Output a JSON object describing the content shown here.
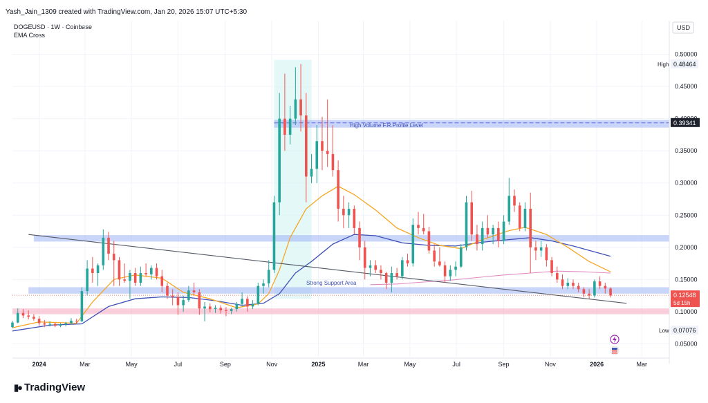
{
  "header": {
    "created_line": "Yash_Jain_1309 created with TradingView.com, Jan 20, 2026 15:07 UTC+5:30",
    "symbol_line": "DOGEUSD · 1W · Coinbase",
    "indicator": "EMA Cross"
  },
  "brand": {
    "name": "TradingView"
  },
  "price_axis": {
    "currency": "USD"
  },
  "labels": {
    "high_tag": "High",
    "high_value": "0.48464",
    "low_tag": "Low",
    "low_value": "0.07076",
    "last_price": "0.12548",
    "countdown": "5d 15h",
    "level_price": "0.39341",
    "hvp_text": "High Volume F.R.Profile Level",
    "support_text": "Strong Support Area"
  },
  "colors": {
    "bull": "#26a69a",
    "bear": "#ef5350",
    "ema_fast": "#f5a623",
    "ema_slow": "#3f51b5",
    "ma_long": "#e38bc2",
    "blue_zone": "#9fb3f5",
    "pink_zone": "#f7a7c0"
  },
  "chart_data": {
    "type": "candlestick",
    "ylim": [
      0.03,
      0.52
    ],
    "y_ticks": [
      "0.50000",
      "0.45000",
      "0.40000",
      "0.35000",
      "0.30000",
      "0.25000",
      "0.20000",
      "0.15000",
      "0.10000",
      "0.05000"
    ],
    "y_tick_values": [
      0.5,
      0.45,
      0.4,
      0.35,
      0.3,
      0.25,
      0.2,
      0.15,
      0.1,
      0.05
    ],
    "x_ticks": [
      "2024",
      "Mar",
      "May",
      "Jul",
      "Sep",
      "Nov",
      "2025",
      "Mar",
      "May",
      "Jul",
      "Sep",
      "Nov",
      "2026",
      "Mar"
    ],
    "x_tick_dates": [
      "2024-01-01",
      "2024-03-01",
      "2024-05-01",
      "2024-07-01",
      "2024-09-01",
      "2024-11-01",
      "2025-01-01",
      "2025-03-01",
      "2025-05-01",
      "2025-07-01",
      "2025-09-01",
      "2025-11-01",
      "2026-01-01",
      "2026-03-01"
    ],
    "x_range": [
      "2023-11-27",
      "2026-04-06"
    ],
    "candles": [
      {
        "d": "2023-11-27",
        "o": 0.076,
        "h": 0.086,
        "l": 0.074,
        "c": 0.083
      },
      {
        "d": "2023-12-04",
        "o": 0.083,
        "h": 0.105,
        "l": 0.082,
        "c": 0.098
      },
      {
        "d": "2023-12-11",
        "o": 0.098,
        "h": 0.104,
        "l": 0.09,
        "c": 0.094
      },
      {
        "d": "2023-12-18",
        "o": 0.094,
        "h": 0.102,
        "l": 0.088,
        "c": 0.092
      },
      {
        "d": "2023-12-25",
        "o": 0.092,
        "h": 0.096,
        "l": 0.086,
        "c": 0.089
      },
      {
        "d": "2024-01-01",
        "o": 0.089,
        "h": 0.093,
        "l": 0.078,
        "c": 0.082
      },
      {
        "d": "2024-01-08",
        "o": 0.082,
        "h": 0.087,
        "l": 0.076,
        "c": 0.08
      },
      {
        "d": "2024-01-15",
        "o": 0.08,
        "h": 0.085,
        "l": 0.077,
        "c": 0.081
      },
      {
        "d": "2024-01-22",
        "o": 0.081,
        "h": 0.083,
        "l": 0.076,
        "c": 0.078
      },
      {
        "d": "2024-01-29",
        "o": 0.078,
        "h": 0.082,
        "l": 0.076,
        "c": 0.08
      },
      {
        "d": "2024-02-05",
        "o": 0.08,
        "h": 0.084,
        "l": 0.077,
        "c": 0.082
      },
      {
        "d": "2024-02-12",
        "o": 0.082,
        "h": 0.09,
        "l": 0.08,
        "c": 0.086
      },
      {
        "d": "2024-02-19",
        "o": 0.086,
        "h": 0.089,
        "l": 0.082,
        "c": 0.085
      },
      {
        "d": "2024-02-26",
        "o": 0.085,
        "h": 0.138,
        "l": 0.084,
        "c": 0.132
      },
      {
        "d": "2024-03-04",
        "o": 0.132,
        "h": 0.18,
        "l": 0.125,
        "c": 0.167
      },
      {
        "d": "2024-03-11",
        "o": 0.167,
        "h": 0.185,
        "l": 0.145,
        "c": 0.16
      },
      {
        "d": "2024-03-18",
        "o": 0.16,
        "h": 0.175,
        "l": 0.14,
        "c": 0.172
      },
      {
        "d": "2024-03-25",
        "o": 0.172,
        "h": 0.228,
        "l": 0.165,
        "c": 0.215
      },
      {
        "d": "2024-04-01",
        "o": 0.215,
        "h": 0.224,
        "l": 0.18,
        "c": 0.19
      },
      {
        "d": "2024-04-08",
        "o": 0.19,
        "h": 0.21,
        "l": 0.14,
        "c": 0.18
      },
      {
        "d": "2024-04-15",
        "o": 0.18,
        "h": 0.185,
        "l": 0.14,
        "c": 0.15
      },
      {
        "d": "2024-04-22",
        "o": 0.15,
        "h": 0.175,
        "l": 0.145,
        "c": 0.148
      },
      {
        "d": "2024-04-29",
        "o": 0.148,
        "h": 0.165,
        "l": 0.12,
        "c": 0.16
      },
      {
        "d": "2024-05-06",
        "o": 0.16,
        "h": 0.168,
        "l": 0.14,
        "c": 0.145
      },
      {
        "d": "2024-05-13",
        "o": 0.145,
        "h": 0.17,
        "l": 0.14,
        "c": 0.16
      },
      {
        "d": "2024-05-20",
        "o": 0.16,
        "h": 0.175,
        "l": 0.155,
        "c": 0.158
      },
      {
        "d": "2024-05-27",
        "o": 0.158,
        "h": 0.172,
        "l": 0.15,
        "c": 0.168
      },
      {
        "d": "2024-06-03",
        "o": 0.168,
        "h": 0.175,
        "l": 0.15,
        "c": 0.155
      },
      {
        "d": "2024-06-10",
        "o": 0.155,
        "h": 0.165,
        "l": 0.13,
        "c": 0.14
      },
      {
        "d": "2024-06-17",
        "o": 0.14,
        "h": 0.145,
        "l": 0.12,
        "c": 0.125
      },
      {
        "d": "2024-06-24",
        "o": 0.125,
        "h": 0.135,
        "l": 0.11,
        "c": 0.123
      },
      {
        "d": "2024-07-01",
        "o": 0.123,
        "h": 0.13,
        "l": 0.095,
        "c": 0.11
      },
      {
        "d": "2024-07-08",
        "o": 0.11,
        "h": 0.125,
        "l": 0.1,
        "c": 0.118
      },
      {
        "d": "2024-07-15",
        "o": 0.118,
        "h": 0.14,
        "l": 0.115,
        "c": 0.133
      },
      {
        "d": "2024-07-22",
        "o": 0.133,
        "h": 0.145,
        "l": 0.125,
        "c": 0.13
      },
      {
        "d": "2024-07-29",
        "o": 0.13,
        "h": 0.135,
        "l": 0.095,
        "c": 0.105
      },
      {
        "d": "2024-08-05",
        "o": 0.105,
        "h": 0.115,
        "l": 0.085,
        "c": 0.108
      },
      {
        "d": "2024-08-12",
        "o": 0.108,
        "h": 0.113,
        "l": 0.099,
        "c": 0.104
      },
      {
        "d": "2024-08-19",
        "o": 0.104,
        "h": 0.11,
        "l": 0.098,
        "c": 0.106
      },
      {
        "d": "2024-08-26",
        "o": 0.106,
        "h": 0.11,
        "l": 0.097,
        "c": 0.102
      },
      {
        "d": "2024-09-02",
        "o": 0.102,
        "h": 0.107,
        "l": 0.093,
        "c": 0.101
      },
      {
        "d": "2024-09-09",
        "o": 0.101,
        "h": 0.106,
        "l": 0.096,
        "c": 0.104
      },
      {
        "d": "2024-09-16",
        "o": 0.104,
        "h": 0.115,
        "l": 0.1,
        "c": 0.112
      },
      {
        "d": "2024-09-23",
        "o": 0.112,
        "h": 0.13,
        "l": 0.108,
        "c": 0.12
      },
      {
        "d": "2024-09-30",
        "o": 0.12,
        "h": 0.124,
        "l": 0.1,
        "c": 0.108
      },
      {
        "d": "2024-10-07",
        "o": 0.108,
        "h": 0.118,
        "l": 0.104,
        "c": 0.112
      },
      {
        "d": "2024-10-14",
        "o": 0.112,
        "h": 0.145,
        "l": 0.11,
        "c": 0.14
      },
      {
        "d": "2024-10-21",
        "o": 0.14,
        "h": 0.15,
        "l": 0.128,
        "c": 0.144
      },
      {
        "d": "2024-10-28",
        "o": 0.144,
        "h": 0.18,
        "l": 0.138,
        "c": 0.165
      },
      {
        "d": "2024-11-04",
        "o": 0.165,
        "h": 0.28,
        "l": 0.16,
        "c": 0.27
      },
      {
        "d": "2024-11-11",
        "o": 0.27,
        "h": 0.44,
        "l": 0.25,
        "c": 0.4
      },
      {
        "d": "2024-11-18",
        "o": 0.4,
        "h": 0.47,
        "l": 0.35,
        "c": 0.375
      },
      {
        "d": "2024-11-25",
        "o": 0.375,
        "h": 0.42,
        "l": 0.36,
        "c": 0.4
      },
      {
        "d": "2024-12-02",
        "o": 0.4,
        "h": 0.48,
        "l": 0.39,
        "c": 0.43
      },
      {
        "d": "2024-12-09",
        "o": 0.43,
        "h": 0.485,
        "l": 0.38,
        "c": 0.405
      },
      {
        "d": "2024-12-16",
        "o": 0.405,
        "h": 0.44,
        "l": 0.27,
        "c": 0.31
      },
      {
        "d": "2024-12-23",
        "o": 0.31,
        "h": 0.345,
        "l": 0.3,
        "c": 0.322
      },
      {
        "d": "2024-12-30",
        "o": 0.322,
        "h": 0.39,
        "l": 0.3,
        "c": 0.365
      },
      {
        "d": "2025-01-06",
        "o": 0.365,
        "h": 0.403,
        "l": 0.32,
        "c": 0.35
      },
      {
        "d": "2025-01-13",
        "o": 0.35,
        "h": 0.43,
        "l": 0.325,
        "c": 0.345
      },
      {
        "d": "2025-01-20",
        "o": 0.345,
        "h": 0.39,
        "l": 0.31,
        "c": 0.32
      },
      {
        "d": "2025-01-27",
        "o": 0.32,
        "h": 0.335,
        "l": 0.24,
        "c": 0.26
      },
      {
        "d": "2025-02-03",
        "o": 0.26,
        "h": 0.28,
        "l": 0.23,
        "c": 0.25
      },
      {
        "d": "2025-02-10",
        "o": 0.25,
        "h": 0.27,
        "l": 0.23,
        "c": 0.26
      },
      {
        "d": "2025-02-17",
        "o": 0.26,
        "h": 0.265,
        "l": 0.22,
        "c": 0.23
      },
      {
        "d": "2025-02-24",
        "o": 0.23,
        "h": 0.24,
        "l": 0.18,
        "c": 0.2
      },
      {
        "d": "2025-03-03",
        "o": 0.2,
        "h": 0.21,
        "l": 0.15,
        "c": 0.168
      },
      {
        "d": "2025-03-10",
        "o": 0.168,
        "h": 0.18,
        "l": 0.155,
        "c": 0.172
      },
      {
        "d": "2025-03-17",
        "o": 0.172,
        "h": 0.18,
        "l": 0.16,
        "c": 0.165
      },
      {
        "d": "2025-03-24",
        "o": 0.165,
        "h": 0.172,
        "l": 0.15,
        "c": 0.16
      },
      {
        "d": "2025-03-31",
        "o": 0.16,
        "h": 0.162,
        "l": 0.135,
        "c": 0.145
      },
      {
        "d": "2025-04-07",
        "o": 0.145,
        "h": 0.17,
        "l": 0.13,
        "c": 0.16
      },
      {
        "d": "2025-04-14",
        "o": 0.16,
        "h": 0.168,
        "l": 0.15,
        "c": 0.155
      },
      {
        "d": "2025-04-21",
        "o": 0.155,
        "h": 0.185,
        "l": 0.15,
        "c": 0.18
      },
      {
        "d": "2025-04-28",
        "o": 0.18,
        "h": 0.19,
        "l": 0.17,
        "c": 0.175
      },
      {
        "d": "2025-05-05",
        "o": 0.175,
        "h": 0.245,
        "l": 0.17,
        "c": 0.235
      },
      {
        "d": "2025-05-12",
        "o": 0.235,
        "h": 0.255,
        "l": 0.22,
        "c": 0.23
      },
      {
        "d": "2025-05-19",
        "o": 0.23,
        "h": 0.252,
        "l": 0.22,
        "c": 0.225
      },
      {
        "d": "2025-05-26",
        "o": 0.225,
        "h": 0.232,
        "l": 0.19,
        "c": 0.195
      },
      {
        "d": "2025-06-02",
        "o": 0.195,
        "h": 0.205,
        "l": 0.17,
        "c": 0.178
      },
      {
        "d": "2025-06-09",
        "o": 0.178,
        "h": 0.2,
        "l": 0.17,
        "c": 0.172
      },
      {
        "d": "2025-06-16",
        "o": 0.172,
        "h": 0.178,
        "l": 0.145,
        "c": 0.155
      },
      {
        "d": "2025-06-23",
        "o": 0.155,
        "h": 0.172,
        "l": 0.148,
        "c": 0.165
      },
      {
        "d": "2025-06-30",
        "o": 0.165,
        "h": 0.178,
        "l": 0.155,
        "c": 0.17
      },
      {
        "d": "2025-07-07",
        "o": 0.17,
        "h": 0.205,
        "l": 0.168,
        "c": 0.2
      },
      {
        "d": "2025-07-14",
        "o": 0.2,
        "h": 0.28,
        "l": 0.195,
        "c": 0.27
      },
      {
        "d": "2025-07-21",
        "o": 0.27,
        "h": 0.288,
        "l": 0.21,
        "c": 0.22
      },
      {
        "d": "2025-07-28",
        "o": 0.22,
        "h": 0.235,
        "l": 0.195,
        "c": 0.205
      },
      {
        "d": "2025-08-04",
        "o": 0.205,
        "h": 0.24,
        "l": 0.195,
        "c": 0.23
      },
      {
        "d": "2025-08-11",
        "o": 0.23,
        "h": 0.25,
        "l": 0.215,
        "c": 0.22
      },
      {
        "d": "2025-08-18",
        "o": 0.22,
        "h": 0.235,
        "l": 0.205,
        "c": 0.23
      },
      {
        "d": "2025-08-25",
        "o": 0.23,
        "h": 0.24,
        "l": 0.2,
        "c": 0.21
      },
      {
        "d": "2025-09-01",
        "o": 0.21,
        "h": 0.25,
        "l": 0.205,
        "c": 0.24
      },
      {
        "d": "2025-09-08",
        "o": 0.24,
        "h": 0.308,
        "l": 0.235,
        "c": 0.28
      },
      {
        "d": "2025-09-15",
        "o": 0.28,
        "h": 0.29,
        "l": 0.255,
        "c": 0.265
      },
      {
        "d": "2025-09-22",
        "o": 0.265,
        "h": 0.27,
        "l": 0.225,
        "c": 0.23
      },
      {
        "d": "2025-09-29",
        "o": 0.23,
        "h": 0.27,
        "l": 0.225,
        "c": 0.26
      },
      {
        "d": "2025-10-06",
        "o": 0.26,
        "h": 0.285,
        "l": 0.16,
        "c": 0.2
      },
      {
        "d": "2025-10-13",
        "o": 0.2,
        "h": 0.21,
        "l": 0.18,
        "c": 0.195
      },
      {
        "d": "2025-10-20",
        "o": 0.195,
        "h": 0.21,
        "l": 0.185,
        "c": 0.2
      },
      {
        "d": "2025-10-27",
        "o": 0.2,
        "h": 0.205,
        "l": 0.17,
        "c": 0.18
      },
      {
        "d": "2025-11-03",
        "o": 0.18,
        "h": 0.185,
        "l": 0.155,
        "c": 0.16
      },
      {
        "d": "2025-11-10",
        "o": 0.16,
        "h": 0.17,
        "l": 0.145,
        "c": 0.15
      },
      {
        "d": "2025-11-17",
        "o": 0.15,
        "h": 0.158,
        "l": 0.135,
        "c": 0.14
      },
      {
        "d": "2025-11-24",
        "o": 0.14,
        "h": 0.152,
        "l": 0.135,
        "c": 0.145
      },
      {
        "d": "2025-12-01",
        "o": 0.145,
        "h": 0.15,
        "l": 0.135,
        "c": 0.14
      },
      {
        "d": "2025-12-08",
        "o": 0.14,
        "h": 0.145,
        "l": 0.13,
        "c": 0.135
      },
      {
        "d": "2025-12-15",
        "o": 0.135,
        "h": 0.138,
        "l": 0.122,
        "c": 0.128
      },
      {
        "d": "2025-12-22",
        "o": 0.128,
        "h": 0.135,
        "l": 0.12,
        "c": 0.125
      },
      {
        "d": "2025-12-29",
        "o": 0.125,
        "h": 0.15,
        "l": 0.122,
        "c": 0.147
      },
      {
        "d": "2026-01-05",
        "o": 0.147,
        "h": 0.155,
        "l": 0.135,
        "c": 0.14
      },
      {
        "d": "2026-01-12",
        "o": 0.14,
        "h": 0.145,
        "l": 0.128,
        "c": 0.136
      },
      {
        "d": "2026-01-19",
        "o": 0.136,
        "h": 0.138,
        "l": 0.122,
        "c": 0.125
      }
    ],
    "ema_fast": [
      [
        "2023-11-27",
        0.075
      ],
      [
        "2024-01-01",
        0.084
      ],
      [
        "2024-02-19",
        0.082
      ],
      [
        "2024-03-11",
        0.115
      ],
      [
        "2024-04-08",
        0.15
      ],
      [
        "2024-05-06",
        0.157
      ],
      [
        "2024-06-10",
        0.152
      ],
      [
        "2024-07-08",
        0.13
      ],
      [
        "2024-08-12",
        0.12
      ],
      [
        "2024-09-16",
        0.106
      ],
      [
        "2024-10-14",
        0.112
      ],
      [
        "2024-10-28",
        0.128
      ],
      [
        "2024-11-11",
        0.165
      ],
      [
        "2024-11-25",
        0.215
      ],
      [
        "2024-12-16",
        0.26
      ],
      [
        "2025-01-06",
        0.28
      ],
      [
        "2025-01-27",
        0.295
      ],
      [
        "2025-02-17",
        0.282
      ],
      [
        "2025-03-17",
        0.258
      ],
      [
        "2025-04-14",
        0.23
      ],
      [
        "2025-05-12",
        0.215
      ],
      [
        "2025-06-09",
        0.203
      ],
      [
        "2025-07-07",
        0.198
      ],
      [
        "2025-08-04",
        0.212
      ],
      [
        "2025-09-08",
        0.226
      ],
      [
        "2025-09-29",
        0.231
      ],
      [
        "2025-10-27",
        0.22
      ],
      [
        "2025-11-24",
        0.2
      ],
      [
        "2025-12-22",
        0.178
      ],
      [
        "2026-01-19",
        0.162
      ]
    ],
    "ema_slow": [
      [
        "2023-11-27",
        0.07
      ],
      [
        "2024-01-15",
        0.079
      ],
      [
        "2024-02-26",
        0.081
      ],
      [
        "2024-04-01",
        0.108
      ],
      [
        "2024-05-06",
        0.12
      ],
      [
        "2024-06-10",
        0.123
      ],
      [
        "2024-07-15",
        0.122
      ],
      [
        "2024-08-19",
        0.117
      ],
      [
        "2024-09-23",
        0.11
      ],
      [
        "2024-10-21",
        0.113
      ],
      [
        "2024-11-11",
        0.128
      ],
      [
        "2024-12-02",
        0.16
      ],
      [
        "2024-12-23",
        0.178
      ],
      [
        "2025-01-20",
        0.205
      ],
      [
        "2025-02-17",
        0.22
      ],
      [
        "2025-03-17",
        0.218
      ],
      [
        "2025-04-21",
        0.207
      ],
      [
        "2025-05-26",
        0.203
      ],
      [
        "2025-06-30",
        0.202
      ],
      [
        "2025-08-04",
        0.208
      ],
      [
        "2025-09-08",
        0.212
      ],
      [
        "2025-10-06",
        0.215
      ],
      [
        "2025-11-03",
        0.21
      ],
      [
        "2025-12-01",
        0.202
      ],
      [
        "2026-01-19",
        0.186
      ]
    ],
    "ma_long": [
      [
        "2025-03-10",
        0.142
      ],
      [
        "2025-04-14",
        0.143
      ],
      [
        "2025-05-19",
        0.146
      ],
      [
        "2025-06-23",
        0.149
      ],
      [
        "2025-07-28",
        0.153
      ],
      [
        "2025-09-01",
        0.157
      ],
      [
        "2025-10-06",
        0.16
      ],
      [
        "2025-11-10",
        0.163
      ],
      [
        "2025-12-15",
        0.162
      ],
      [
        "2026-01-19",
        0.16
      ]
    ],
    "trendline": [
      [
        "2023-12-18",
        0.22
      ],
      [
        "2026-02-09",
        0.113
      ]
    ],
    "zones": [
      {
        "name": "hvp_line",
        "y1": 0.386,
        "y2": 0.398,
        "from": "2024-11-04",
        "to": "2026-04-06"
      },
      {
        "name": "resistance",
        "y1": 0.209,
        "y2": 0.219,
        "from": "2023-12-25",
        "to": "2026-04-06"
      },
      {
        "name": "support",
        "y1": 0.128,
        "y2": 0.138,
        "from": "2023-12-18",
        "to": "2026-04-06"
      },
      {
        "name": "pink_demand",
        "y1": 0.096,
        "y2": 0.105,
        "from": "2023-11-27",
        "to": "2026-04-06"
      }
    ],
    "highlight": {
      "from": "2024-11-04",
      "to": "2024-12-23",
      "ylow": 0.12,
      "yhigh": 0.485
    },
    "last_price": 0.12548,
    "level_price": 0.39341,
    "high": 0.48464,
    "low": 0.07076
  }
}
